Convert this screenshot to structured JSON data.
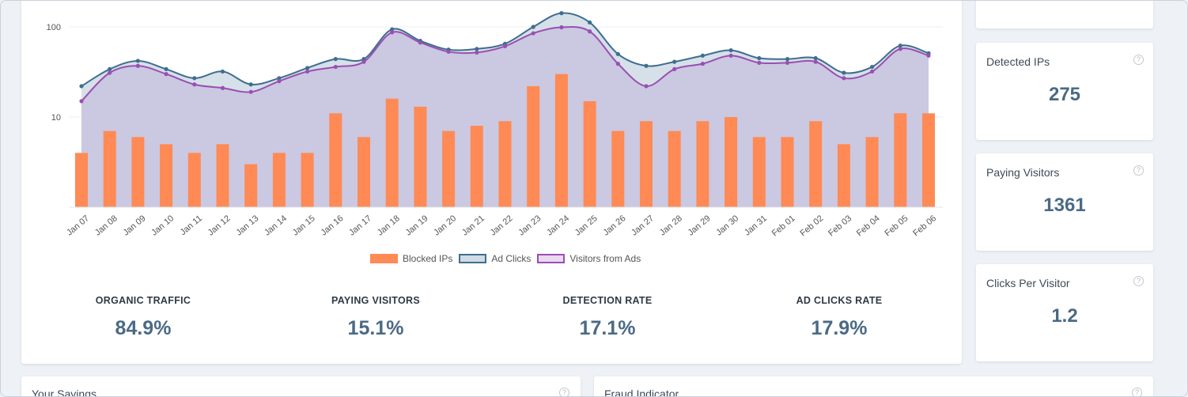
{
  "chart_data": {
    "type": "bar+area",
    "scale": "log",
    "yticks": [
      "100",
      "10"
    ],
    "ylim": [
      1,
      200
    ],
    "categories": [
      "Jan 07",
      "Jan 08",
      "Jan 09",
      "Jan 10",
      "Jan 11",
      "Jan 12",
      "Jan 13",
      "Jan 14",
      "Jan 15",
      "Jan 16",
      "Jan 17",
      "Jan 18",
      "Jan 19",
      "Jan 20",
      "Jan 21",
      "Jan 22",
      "Jan 23",
      "Jan 24",
      "Jan 25",
      "Jan 26",
      "Jan 27",
      "Jan 28",
      "Jan 29",
      "Jan 30",
      "Jan 31",
      "Feb 01",
      "Feb 02",
      "Feb 03",
      "Feb 04",
      "Feb 05",
      "Feb 06"
    ],
    "series": [
      {
        "name": "Blocked IPs",
        "kind": "bar",
        "color": "#ff8a55",
        "values": [
          4,
          7,
          6,
          5,
          4,
          5,
          3,
          4,
          4,
          11,
          6,
          16,
          13,
          7,
          8,
          9,
          22,
          30,
          15,
          7,
          9,
          7,
          9,
          10,
          6,
          6,
          9,
          5,
          6,
          11,
          11
        ]
      },
      {
        "name": "Ad Clicks",
        "kind": "area",
        "color": "#3f6e8e",
        "fill": "#cfdbe5",
        "values": [
          22,
          34,
          42,
          34,
          27,
          32,
          23,
          27,
          35,
          44,
          44,
          94,
          70,
          56,
          57,
          65,
          100,
          142,
          112,
          50,
          37,
          41,
          48,
          55,
          45,
          44,
          45,
          31,
          36,
          62,
          51
        ]
      },
      {
        "name": "Visitors from Ads",
        "kind": "area",
        "color": "#9a4fb2",
        "fill": "#cac5e0",
        "values": [
          15,
          31,
          37,
          30,
          23,
          21,
          19,
          25,
          32,
          36,
          41,
          87,
          67,
          53,
          52,
          61,
          85,
          99,
          89,
          39,
          22,
          34,
          39,
          48,
          40,
          40,
          41,
          27,
          32,
          57,
          48
        ]
      }
    ]
  },
  "stats": [
    {
      "label": "ORGANIC TRAFFIC",
      "value": "84.9%"
    },
    {
      "label": "PAYING VISITORS",
      "value": "15.1%"
    },
    {
      "label": "DETECTION RATE",
      "value": "17.1%"
    },
    {
      "label": "AD CLICKS RATE",
      "value": "17.9%"
    }
  ],
  "side_cards": [
    {
      "title": "",
      "value": ""
    },
    {
      "title": "Detected IPs",
      "value": "275"
    },
    {
      "title": "Paying Visitors",
      "value": "1361"
    },
    {
      "title": "Clicks Per Visitor",
      "value": "1.2"
    }
  ],
  "bottom_cards": [
    {
      "title": "Your Savings"
    },
    {
      "title": "Fraud Indicator"
    }
  ],
  "help_glyph": "?"
}
